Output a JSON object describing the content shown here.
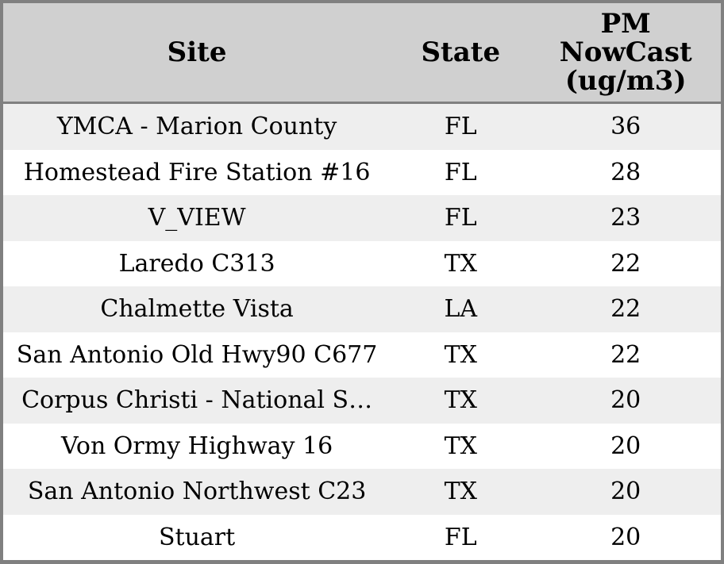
{
  "colors": {
    "border": "#808080",
    "header_bg": "#d0d0d0",
    "row_alt_bg": "#eeeeee",
    "row_bg": "#ffffff",
    "text": "#000000"
  },
  "table": {
    "columns": [
      {
        "label": "Site"
      },
      {
        "label": "State"
      },
      {
        "label": "PM\nNowCast\n(ug/m3)"
      }
    ],
    "rows": [
      {
        "site": "YMCA - Marion County",
        "state": "FL",
        "pm": "36"
      },
      {
        "site": "Homestead Fire Station #16",
        "state": "FL",
        "pm": "28"
      },
      {
        "site": "V_VIEW",
        "state": "FL",
        "pm": "23"
      },
      {
        "site": "Laredo C313",
        "state": "TX",
        "pm": "22"
      },
      {
        "site": "Chalmette Vista",
        "state": "LA",
        "pm": "22"
      },
      {
        "site": "San Antonio Old Hwy90 C677",
        "state": "TX",
        "pm": "22"
      },
      {
        "site": "Corpus Christi - National S…",
        "state": "TX",
        "pm": "20"
      },
      {
        "site": "Von Ormy Highway 16",
        "state": "TX",
        "pm": "20"
      },
      {
        "site": "San Antonio Northwest C23",
        "state": "TX",
        "pm": "20"
      },
      {
        "site": "Stuart",
        "state": "FL",
        "pm": "20"
      }
    ]
  },
  "chart_data": {
    "type": "table",
    "columns": [
      "Site",
      "State",
      "PM NowCast (ug/m3)"
    ],
    "rows": [
      [
        "YMCA - Marion County",
        "FL",
        36
      ],
      [
        "Homestead Fire Station #16",
        "FL",
        28
      ],
      [
        "V_VIEW",
        "FL",
        23
      ],
      [
        "Laredo C313",
        "TX",
        22
      ],
      [
        "Chalmette Vista",
        "LA",
        22
      ],
      [
        "San Antonio Old Hwy90 C677",
        "TX",
        22
      ],
      [
        "Corpus Christi - National S…",
        "TX",
        20
      ],
      [
        "Von Ormy Highway 16",
        "TX",
        20
      ],
      [
        "San Antonio Northwest C23",
        "TX",
        20
      ],
      [
        "Stuart",
        "FL",
        20
      ]
    ],
    "layout_hints": {
      "header_background": "#d0d0d0",
      "alternating_rows": true,
      "alignment": "center"
    }
  }
}
